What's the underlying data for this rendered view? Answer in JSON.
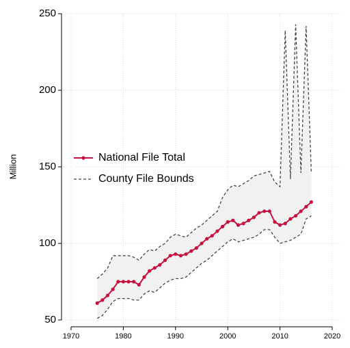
{
  "chart_data": {
    "type": "line",
    "y_label": "Million",
    "x": [
      1975,
      1976,
      1977,
      1978,
      1979,
      1980,
      1981,
      1982,
      1983,
      1984,
      1985,
      1986,
      1987,
      1988,
      1989,
      1990,
      1991,
      1992,
      1993,
      1994,
      1995,
      1996,
      1997,
      1998,
      1999,
      2000,
      2001,
      2002,
      2003,
      2004,
      2005,
      2006,
      2007,
      2008,
      2009,
      2010,
      2011,
      2012,
      2013,
      2014,
      2015,
      2016
    ],
    "series": [
      {
        "name": "National File Total",
        "color": "#c8103e",
        "values": [
          61,
          63,
          66,
          70,
          75,
          75,
          75,
          75,
          73,
          78,
          82,
          84,
          86,
          89,
          92,
          93,
          92,
          93,
          95,
          97,
          100,
          103,
          105,
          108,
          111,
          114,
          115,
          112,
          113,
          115,
          117,
          120,
          121,
          121,
          114,
          112,
          113,
          116,
          118,
          121,
          124,
          127
        ]
      },
      {
        "name": "County File Bounds",
        "color": "#444444",
        "upper": [
          77,
          80,
          84,
          92,
          92,
          92,
          92,
          91,
          89,
          93,
          96,
          95,
          98,
          100,
          104,
          106,
          105,
          104,
          107,
          110,
          112,
          115,
          118,
          121,
          130,
          135,
          138,
          137,
          139,
          141,
          144,
          145,
          146,
          147,
          140,
          137,
          239,
          142,
          243,
          146,
          242,
          146
        ],
        "lower": [
          51,
          53,
          57,
          62,
          64,
          64,
          64,
          63,
          63,
          67,
          69,
          68,
          71,
          74,
          76,
          77,
          77,
          78,
          81,
          84,
          87,
          89,
          92,
          95,
          98,
          101,
          103,
          101,
          102,
          103,
          104,
          106,
          109,
          109,
          104,
          100,
          101,
          102,
          104,
          106,
          116,
          118
        ]
      }
    ],
    "xlim": [
      1970,
      2020
    ],
    "xticks": [
      1970,
      1980,
      1990,
      2000,
      2010,
      2020
    ],
    "ylim": [
      50,
      250
    ],
    "yticks": [
      50,
      100,
      150,
      200,
      250
    ],
    "grid": true
  }
}
